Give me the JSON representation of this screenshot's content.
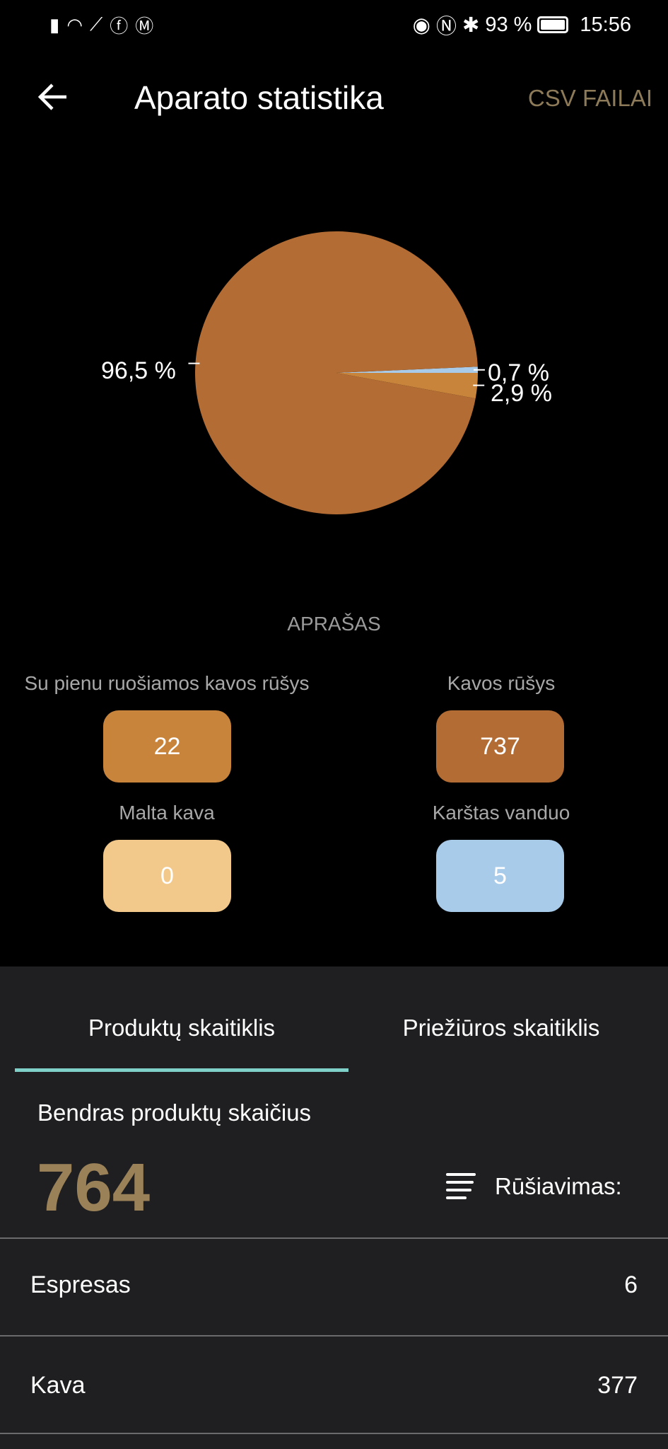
{
  "status_bar": {
    "battery": "93 %",
    "time": "15:56",
    "icons": [
      "signal-icon",
      "wifi-icon",
      "steps-icon",
      "facebook-icon",
      "gmail-icon",
      "eye-icon",
      "nfc-icon",
      "bluetooth-icon",
      "battery-icon"
    ]
  },
  "header": {
    "title": "Aparato statistika",
    "action": "CSV FAILAI"
  },
  "chart_data": {
    "type": "pie",
    "slices": [
      {
        "name": "Karštas vanduo",
        "value": 0.7,
        "label": "0,7 %",
        "color": "#a9cbea"
      },
      {
        "name": "Su pienu ruošiamos kavos rūšys",
        "value": 2.9,
        "label": "2,9 %",
        "color": "#c9843c"
      },
      {
        "name": "Kavos rūšys",
        "value": 96.5,
        "label": "96,5 %",
        "color": "#b36d34"
      },
      {
        "name": "Malta kava",
        "value": 0,
        "label": "",
        "color": "#f2c98a"
      }
    ]
  },
  "legend": {
    "title": "APRAŠAS",
    "items": [
      {
        "label": "Su pienu ruošiamos kavos rūšys",
        "value": "22",
        "color": "#c9843c"
      },
      {
        "label": "Kavos rūšys",
        "value": "737",
        "color": "#b36d34"
      },
      {
        "label": "Malta kava",
        "value": "0",
        "color": "#f2c98a"
      },
      {
        "label": "Karštas vanduo",
        "value": "5",
        "color": "#a9cbea"
      }
    ]
  },
  "tabs": [
    {
      "label": "Produktų skaitiklis",
      "active": true
    },
    {
      "label": "Priežiūros skaitiklis",
      "active": false
    }
  ],
  "summary": {
    "label": "Bendras produktų skaičius",
    "total": "764",
    "sort_label": "Rūšiavimas:"
  },
  "products": [
    {
      "name": "Espresas",
      "count": "6"
    },
    {
      "name": "Kava",
      "count": "377"
    }
  ]
}
